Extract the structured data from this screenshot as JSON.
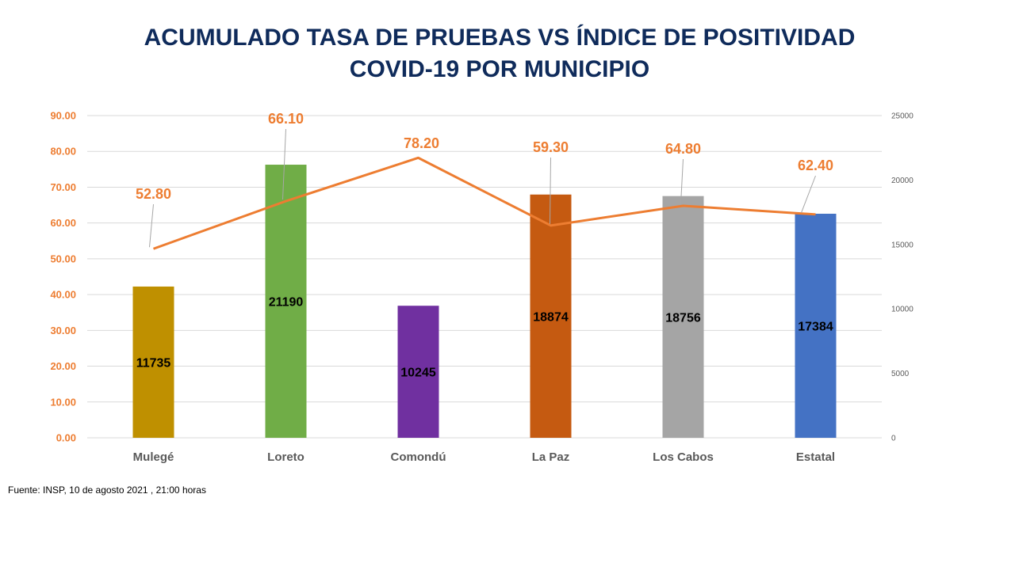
{
  "title": {
    "line1": "ACUMULADO TASA DE PRUEBAS  VS ÍNDICE DE POSITIVIDAD",
    "line2": "COVID-19 POR MUNICIPIO"
  },
  "source": "Fuente: INSP, 10 de agosto 2021 , 21:00 horas",
  "colors": {
    "title": "#0f2b5b",
    "line": "#ed7d31",
    "left_axis_text": "#ed7d31",
    "right_axis_text": "#595959",
    "category_text": "#595959",
    "grid": "#d9d9d9"
  },
  "chart_data": {
    "type": "bar",
    "categories": [
      "Mulegé",
      "Loreto",
      "Comondú",
      "La Paz",
      "Los Cabos",
      "Estatal"
    ],
    "bar_colors": [
      "#bf9000",
      "#70ad47",
      "#7030a0",
      "#c55a11",
      "#a5a5a5",
      "#4472c4"
    ],
    "bar_values": [
      11735,
      21190,
      10245,
      18874,
      18756,
      17384
    ],
    "bar_labels": [
      "11735",
      "21190",
      "10245",
      "18874",
      "18756",
      "17384"
    ],
    "bar_axis": "right",
    "line_values": [
      52.8,
      66.1,
      78.2,
      59.3,
      64.8,
      62.4
    ],
    "line_labels": [
      "52.80",
      "66.10",
      "78.20",
      "59.30",
      "64.80",
      "62.40"
    ],
    "line_axis": "left",
    "y_left": {
      "ylim": [
        0,
        90
      ],
      "ticks": [
        "0.00",
        "10.00",
        "20.00",
        "30.00",
        "40.00",
        "50.00",
        "60.00",
        "70.00",
        "80.00",
        "90.00"
      ]
    },
    "y_right": {
      "ylim": [
        0,
        25000
      ],
      "ticks": [
        "0",
        "5000",
        "10000",
        "15000",
        "20000",
        "25000"
      ]
    },
    "grid": true,
    "legend": "none"
  }
}
